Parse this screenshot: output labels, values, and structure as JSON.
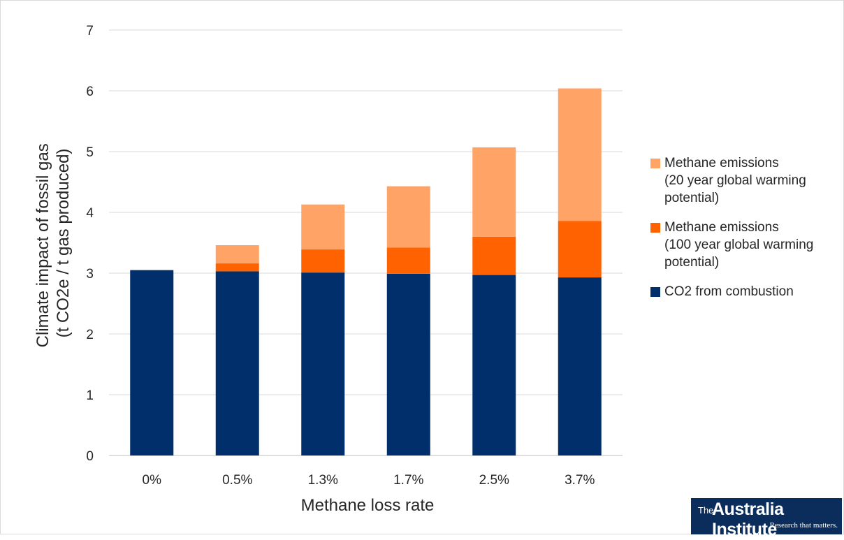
{
  "chart_data": {
    "type": "bar",
    "stacked": true,
    "categories": [
      "0%",
      "0.5%",
      "1.3%",
      "1.7%",
      "2.5%",
      "3.7%"
    ],
    "series": [
      {
        "name": "CO2 from combustion",
        "color": "#002F6C",
        "values": [
          3.05,
          3.03,
          3.01,
          2.99,
          2.97,
          2.93
        ]
      },
      {
        "name": "Methane emissions (100 year global warming potential)",
        "color": "#FF6200",
        "values": [
          0,
          0.13,
          0.38,
          0.43,
          0.63,
          0.93
        ]
      },
      {
        "name": "Methane emissions (20 year global warming potential)",
        "color": "#FFA366",
        "values": [
          0,
          0.3,
          0.74,
          1.01,
          1.47,
          2.18
        ]
      }
    ],
    "title": "",
    "xlabel": "Methane loss rate",
    "ylabel": [
      "Climate impact of fossil gas",
      "(t CO2e / t gas produced)"
    ],
    "ylim": [
      0,
      7
    ],
    "yticks": [
      0,
      1,
      2,
      3,
      4,
      5,
      6,
      7
    ],
    "grid": true,
    "legend_position": "right"
  },
  "legend_items": [
    {
      "lines": [
        "Methane emissions",
        "(20 year global warming",
        "potential)"
      ],
      "color": "#FFA366"
    },
    {
      "lines": [
        "Methane emissions",
        "(100 year global warming",
        "potential)"
      ],
      "color": "#FF6200"
    },
    {
      "lines": [
        "CO2 from combustion"
      ],
      "color": "#002F6C"
    }
  ],
  "logo": {
    "prefix": "The",
    "name": "Australia Institute",
    "tagline": "Research that matters."
  }
}
